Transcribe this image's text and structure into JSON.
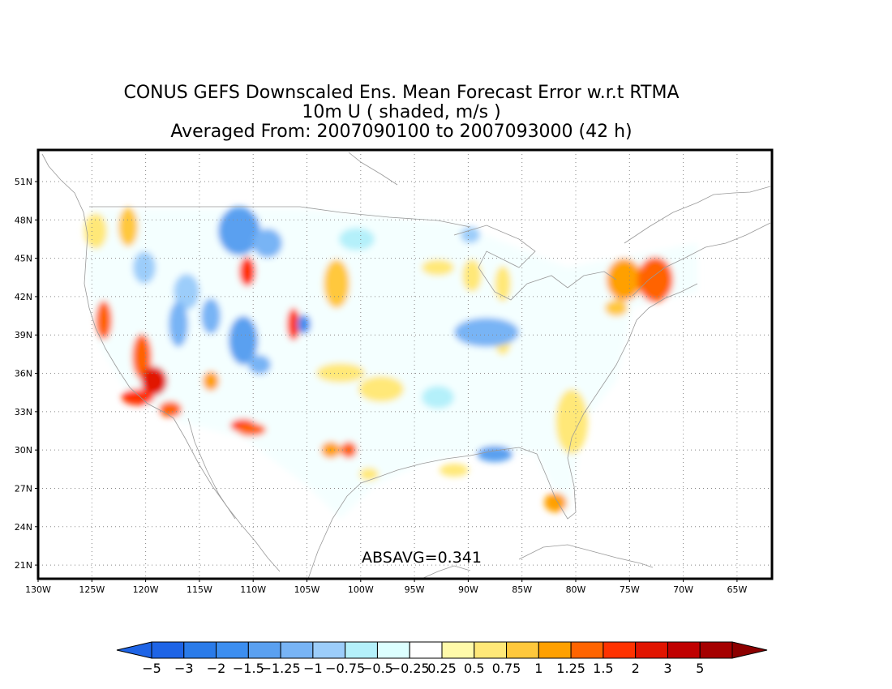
{
  "title": {
    "line1": "CONUS GEFS Downscaled Ens. Mean Forecast Error w.r.t RTMA",
    "line2": "10m U ( shaded, m/s )",
    "line3": "Averaged From: 2007090100 to 2007093000 (42 h)"
  },
  "stat_label": "ABSAVG=0.341",
  "map": {
    "lat_ticks": [
      "51N",
      "48N",
      "45N",
      "42N",
      "39N",
      "36N",
      "33N",
      "30N",
      "27N",
      "24N",
      "21N"
    ],
    "lon_ticks": [
      "130W",
      "125W",
      "120W",
      "115W",
      "110W",
      "105W",
      "100W",
      "95W",
      "90W",
      "85W",
      "80W",
      "75W",
      "70W",
      "65W"
    ],
    "grid": true,
    "colors": {
      "frame": "#000000",
      "grid": "#888888",
      "coast": "#999999"
    }
  },
  "colorbar": {
    "labels": [
      "−5",
      "−3",
      "−2",
      "−1.5",
      "−1.25",
      "−1",
      "−0.75",
      "−0.5",
      "−0.25",
      "0.25",
      "0.5",
      "0.75",
      "1",
      "1.25",
      "1.5",
      "2",
      "3",
      "5"
    ],
    "colors": [
      "#1e64e6",
      "#2a7be9",
      "#3c8ef0",
      "#5aa0f0",
      "#78b4f5",
      "#9ccdfa",
      "#b4f0fa",
      "#dcffff",
      "#ffffff",
      "#fffaaa",
      "#ffe878",
      "#ffc83c",
      "#ffa000",
      "#ff6400",
      "#ff3200",
      "#e11400",
      "#c00000",
      "#a50000"
    ],
    "units": "m/s"
  }
}
